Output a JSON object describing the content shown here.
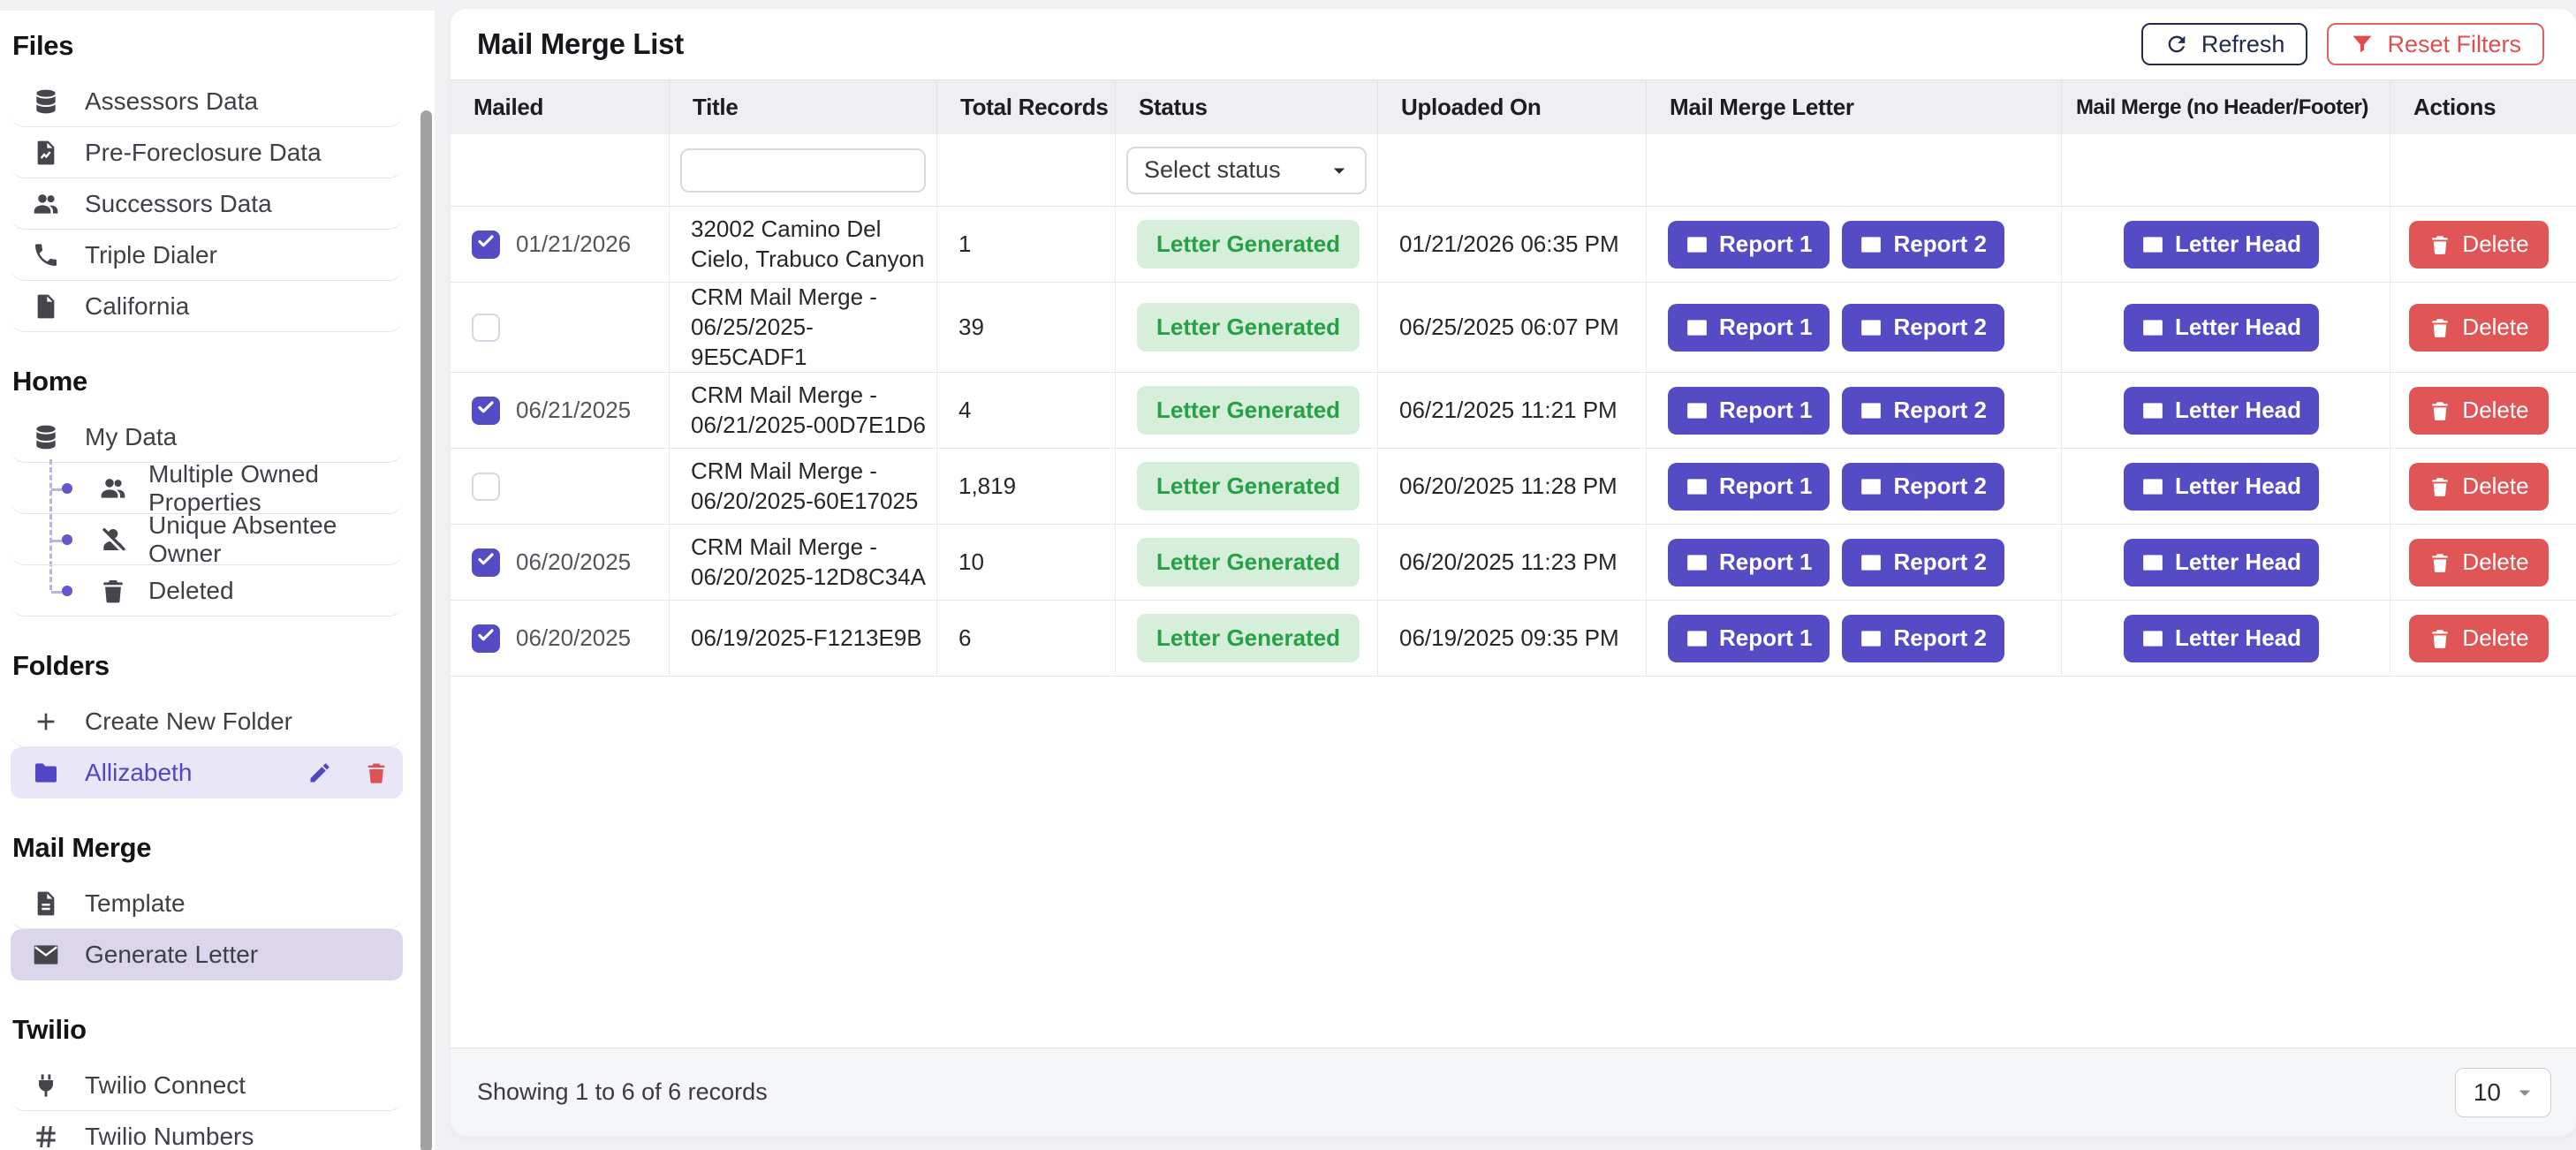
{
  "colors": {
    "accent_purple": "#554bc4",
    "selected_item_bg": "#dcd6ed",
    "folder_selected_bg": "#e9e6f8",
    "danger_red": "#e05656",
    "badge_green_bg": "#d6efdb",
    "badge_green_text": "#27a045",
    "navy": "#232c4d"
  },
  "sidebar": {
    "sections": [
      {
        "title": "Files",
        "items": [
          {
            "label": "Assessors Data",
            "icon": "database-icon"
          },
          {
            "label": "Pre-Foreclosure Data",
            "icon": "file-chart-icon"
          },
          {
            "label": "Successors Data",
            "icon": "users-icon"
          },
          {
            "label": "Triple Dialer",
            "icon": "phone-icon"
          },
          {
            "label": "California",
            "icon": "file-icon"
          }
        ]
      },
      {
        "title": "Home",
        "items": [
          {
            "label": "My Data",
            "icon": "database-icon",
            "children": [
              {
                "label": "Multiple Owned Properties",
                "icon": "users-icon"
              },
              {
                "label": "Unique Absentee Owner",
                "icon": "user-slash-icon"
              },
              {
                "label": "Deleted",
                "icon": "trash-icon"
              }
            ]
          }
        ]
      },
      {
        "title": "Folders",
        "items": [
          {
            "label": "Create New Folder",
            "icon": "plus-icon"
          },
          {
            "label": "Allizabeth",
            "icon": "folder-icon",
            "variant": "folder-selected",
            "row_actions": [
              "edit",
              "delete"
            ]
          }
        ]
      },
      {
        "title": "Mail Merge",
        "items": [
          {
            "label": "Template",
            "icon": "file-lines-icon"
          },
          {
            "label": "Generate Letter",
            "icon": "envelope-icon",
            "selected": true
          }
        ]
      },
      {
        "title": "Twilio",
        "items": [
          {
            "label": "Twilio Connect",
            "icon": "plug-icon"
          },
          {
            "label": "Twilio Numbers",
            "icon": "hash-icon"
          }
        ]
      }
    ]
  },
  "main": {
    "title": "Mail Merge List",
    "refresh_label": "Refresh",
    "reset_filters_label": "Reset Filters",
    "table": {
      "columns": [
        "Mailed",
        "Title",
        "Total Records",
        "Status",
        "Uploaded On",
        "Mail Merge Letter",
        "Mail Merge (no Header/Footer)",
        "Actions"
      ],
      "filter": {
        "title_value": "",
        "status_placeholder": "Select status"
      },
      "buttons": {
        "report1": "Report 1",
        "report2": "Report 2",
        "letterhead": "Letter Head",
        "delete": "Delete"
      },
      "rows": [
        {
          "checked": true,
          "mailed_date": "01/21/2026",
          "title": "32002 Camino Del Cielo, Trabuco Canyon",
          "total_records": "1",
          "status": "Letter Generated",
          "uploaded_on": "01/21/2026 06:35 PM"
        },
        {
          "checked": false,
          "mailed_date": "",
          "title": "CRM Mail Merge - 06/25/2025-9E5CADF1",
          "total_records": "39",
          "status": "Letter Generated",
          "uploaded_on": "06/25/2025 06:07 PM"
        },
        {
          "checked": true,
          "mailed_date": "06/21/2025",
          "title": "CRM Mail Merge - 06/21/2025-00D7E1D6",
          "total_records": "4",
          "status": "Letter Generated",
          "uploaded_on": "06/21/2025 11:21 PM"
        },
        {
          "checked": false,
          "mailed_date": "",
          "title": "CRM Mail Merge - 06/20/2025-60E17025",
          "total_records": "1,819",
          "status": "Letter Generated",
          "uploaded_on": "06/20/2025 11:28 PM"
        },
        {
          "checked": true,
          "mailed_date": "06/20/2025",
          "title": "CRM Mail Merge - 06/20/2025-12D8C34A",
          "total_records": "10",
          "status": "Letter Generated",
          "uploaded_on": "06/20/2025 11:23 PM"
        },
        {
          "checked": true,
          "mailed_date": "06/20/2025",
          "title": "06/19/2025-F1213E9B",
          "total_records": "6",
          "status": "Letter Generated",
          "uploaded_on": "06/19/2025 09:35 PM"
        }
      ]
    },
    "footer": {
      "summary": "Showing 1 to 6 of 6 records",
      "page_size": "10"
    }
  }
}
